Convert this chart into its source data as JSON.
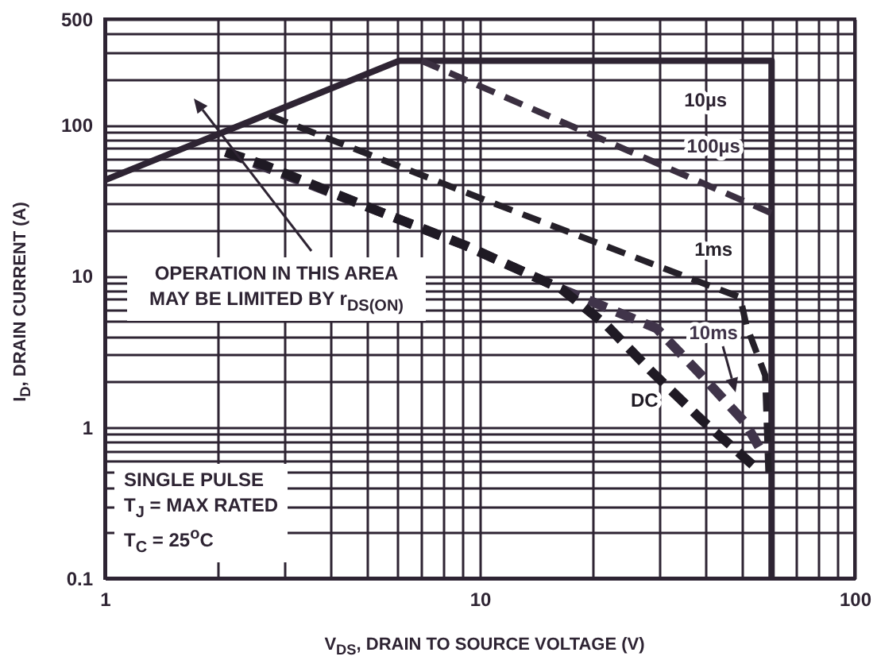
{
  "chart_data": {
    "type": "line",
    "xlabel": "V$_{DS}$, DRAIN TO SOURCE VOLTAGE (V)",
    "ylabel": "I$_{D}$, DRAIN CURRENT (A)",
    "log": "xy",
    "grid": true,
    "marker": "none",
    "xlim": [
      1,
      100
    ],
    "ylim": [
      0.1,
      500
    ],
    "xticks": [
      1,
      {
        "value": 2,
        "label": null
      },
      {
        "value": 3,
        "label": null
      },
      {
        "value": 4,
        "label": null
      },
      {
        "value": 5,
        "label": null
      },
      {
        "value": 6,
        "label": null
      },
      {
        "value": 7,
        "label": null
      },
      {
        "value": 8,
        "label": null
      },
      {
        "value": 9,
        "label": null
      },
      10,
      {
        "value": 20,
        "label": null
      },
      {
        "value": 30,
        "label": null
      },
      {
        "value": 40,
        "label": null
      },
      {
        "value": 50,
        "label": null
      },
      {
        "value": 60,
        "label": null
      },
      {
        "value": 70,
        "label": null
      },
      {
        "value": 80,
        "label": null
      },
      {
        "value": 90,
        "label": null
      },
      100
    ],
    "yticks": [
      0.1,
      {
        "value": 0.2,
        "label": null
      },
      {
        "value": 0.3,
        "label": null
      },
      {
        "value": 0.4,
        "label": null
      },
      {
        "value": 0.5,
        "label": null
      },
      {
        "value": 0.6,
        "label": null
      },
      {
        "value": 0.7,
        "label": null
      },
      {
        "value": 0.8,
        "label": null
      },
      {
        "value": 0.9,
        "label": null
      },
      1,
      {
        "value": 2,
        "label": null
      },
      {
        "value": 3,
        "label": null
      },
      {
        "value": 4,
        "label": null
      },
      {
        "value": 5,
        "label": null
      },
      {
        "value": 6,
        "label": null
      },
      {
        "value": 7,
        "label": null
      },
      {
        "value": 8,
        "label": null
      },
      {
        "value": 9,
        "label": null
      },
      10,
      {
        "value": 20,
        "label": null
      },
      {
        "value": 30,
        "label": null
      },
      {
        "value": 40,
        "label": null
      },
      {
        "value": 50,
        "label": null
      },
      {
        "value": 60,
        "label": null
      },
      {
        "value": 70,
        "label": null
      },
      {
        "value": 80,
        "label": null
      },
      {
        "value": 90,
        "label": null
      },
      100,
      {
        "value": 200,
        "label": null
      },
      {
        "value": 300,
        "label": null
      },
      {
        "value": 400,
        "label": null
      },
      500
    ],
    "series": [
      {
        "name": "10µs",
        "color": "#2e2433",
        "line_style": "solid",
        "x": [
          1,
          6.1,
          60,
          60
        ],
        "values": [
          43,
          265,
          265,
          0.1
        ]
      },
      {
        "name": "100µs",
        "color": "#3a2f40",
        "line_style": "dashed",
        "x": [
          7,
          60
        ],
        "values": [
          265,
          26
        ]
      },
      {
        "name": "1ms",
        "color": "#252029",
        "line_style": "dashed",
        "x": [
          2.75,
          10.6,
          49.5,
          51.4,
          57.7,
          59
        ],
        "values": [
          115,
          31,
          7.2,
          4.7,
          2.2,
          0.43
        ]
      },
      {
        "name": "10ms",
        "color": "#40344a",
        "line_style": "dashed",
        "x": [
          2.1,
          4.95,
          9.2,
          16.5,
          29.6,
          39,
          51,
          57
        ],
        "values": [
          66,
          29,
          15.8,
          8.2,
          4.5,
          2.2,
          1.07,
          0.66
        ]
      },
      {
        "name": "DC",
        "color": "#1f1a24",
        "line_style": "dashed",
        "x": [
          2.1,
          2.67,
          4.95,
          9.2,
          16.5,
          21.8,
          28.6,
          39,
          53.5
        ],
        "values": [
          66,
          54,
          29,
          15.8,
          8.2,
          4.7,
          2.35,
          1.12,
          0.56
        ]
      }
    ],
    "annotations": [
      "OPERATION IN THIS AREA MAY BE LIMITED BY r$_{DS(ON)}$",
      "SINGLE PULSE",
      "T$_{J}$ = MAX RATED",
      "T$_{C}$ = 25$^{o}$C"
    ]
  }
}
